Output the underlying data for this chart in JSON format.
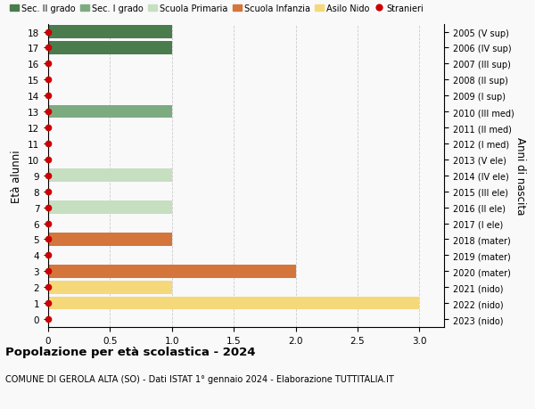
{
  "ages": [
    18,
    17,
    16,
    15,
    14,
    13,
    12,
    11,
    10,
    9,
    8,
    7,
    6,
    5,
    4,
    3,
    2,
    1,
    0
  ],
  "right_labels": [
    "2005 (V sup)",
    "2006 (IV sup)",
    "2007 (III sup)",
    "2008 (II sup)",
    "2009 (I sup)",
    "2010 (III med)",
    "2011 (II med)",
    "2012 (I med)",
    "2013 (V ele)",
    "2014 (IV ele)",
    "2015 (III ele)",
    "2016 (II ele)",
    "2017 (I ele)",
    "2018 (mater)",
    "2019 (mater)",
    "2020 (mater)",
    "2021 (nido)",
    "2022 (nido)",
    "2023 (nido)"
  ],
  "bars": [
    {
      "age": 18,
      "value": 1.0,
      "color": "#4a7c4e"
    },
    {
      "age": 17,
      "value": 1.0,
      "color": "#4a7c4e"
    },
    {
      "age": 13,
      "value": 1.0,
      "color": "#7dab80"
    },
    {
      "age": 9,
      "value": 1.0,
      "color": "#c5dfc0"
    },
    {
      "age": 7,
      "value": 1.0,
      "color": "#c5dfc0"
    },
    {
      "age": 5,
      "value": 1.0,
      "color": "#d4753c"
    },
    {
      "age": 3,
      "value": 2.0,
      "color": "#d4753c"
    },
    {
      "age": 2,
      "value": 1.0,
      "color": "#f5d87a"
    },
    {
      "age": 1,
      "value": 3.0,
      "color": "#f5d87a"
    }
  ],
  "stranieri_ages": [
    18,
    17,
    16,
    15,
    14,
    13,
    12,
    11,
    10,
    9,
    8,
    7,
    6,
    5,
    4,
    3,
    2,
    1,
    0
  ],
  "legend": [
    {
      "label": "Sec. II grado",
      "color": "#4a7c4e",
      "type": "patch"
    },
    {
      "label": "Sec. I grado",
      "color": "#7dab80",
      "type": "patch"
    },
    {
      "label": "Scuola Primaria",
      "color": "#c5dfc0",
      "type": "patch"
    },
    {
      "label": "Scuola Infanzia",
      "color": "#d4753c",
      "type": "patch"
    },
    {
      "label": "Asilo Nido",
      "color": "#f5d87a",
      "type": "patch"
    },
    {
      "label": "Stranieri",
      "color": "#cc0000",
      "type": "circle"
    }
  ],
  "xlim": [
    0,
    3.2
  ],
  "xticks": [
    0,
    0.5,
    1.0,
    1.5,
    2.0,
    2.5,
    3.0
  ],
  "xticklabels": [
    "0",
    "0.5",
    "1.0",
    "1.5",
    "2.0",
    "2.5",
    "3.0"
  ],
  "ylim": [
    -0.5,
    18.5
  ],
  "ylabel_left": "Età alunni",
  "ylabel_right": "Anni di nascita",
  "title": "Popolazione per età scolastica - 2024",
  "subtitle": "COMUNE DI GEROLA ALTA (SO) - Dati ISTAT 1° gennaio 2024 - Elaborazione TUTTITALIA.IT",
  "bar_height": 0.82,
  "background_color": "#f9f9f9",
  "grid_color": "#cccccc",
  "stranieri_dot_color": "#cc0000",
  "stranieri_dot_size": 4.5
}
